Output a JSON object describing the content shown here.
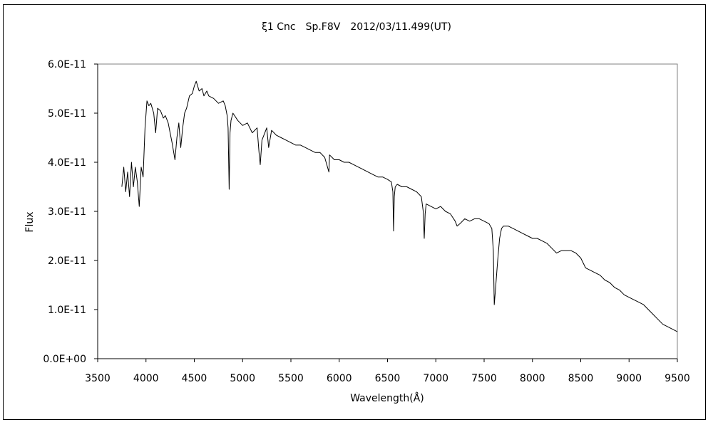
{
  "chart_data": {
    "type": "line",
    "title": "ξ1 Cnc　Sp.F8V　2012/03/11.499(UT)",
    "xlabel": "Wavelength(Å)",
    "ylabel": "Flux",
    "xlim": [
      3500,
      9500
    ],
    "ylim": [
      0,
      6e-11
    ],
    "x_ticks": [
      "3500",
      "4000",
      "4500",
      "5000",
      "5500",
      "6000",
      "6500",
      "7000",
      "7500",
      "8000",
      "8500",
      "9000",
      "9500"
    ],
    "y_ticks": [
      "0.0E+00",
      "1.0E-11",
      "2.0E-11",
      "3.0E-11",
      "4.0E-11",
      "5.0E-11",
      "6.0E-11"
    ],
    "grid": false,
    "series": [
      {
        "color": "#000000",
        "x": [
          3750,
          3770,
          3790,
          3810,
          3830,
          3850,
          3870,
          3890,
          3910,
          3930,
          3950,
          3970,
          3990,
          4010,
          4030,
          4050,
          4080,
          4100,
          4120,
          4150,
          4180,
          4200,
          4230,
          4250,
          4270,
          4300,
          4320,
          4340,
          4360,
          4380,
          4400,
          4420,
          4450,
          4480,
          4500,
          4520,
          4550,
          4580,
          4600,
          4630,
          4650,
          4700,
          4750,
          4800,
          4820,
          4840,
          4850,
          4861,
          4870,
          4880,
          4900,
          4950,
          5000,
          5050,
          5100,
          5150,
          5170,
          5183,
          5200,
          5250,
          5270,
          5300,
          5350,
          5400,
          5450,
          5500,
          5550,
          5600,
          5650,
          5700,
          5750,
          5800,
          5850,
          5893,
          5900,
          5950,
          6000,
          6050,
          6100,
          6150,
          6200,
          6250,
          6300,
          6350,
          6400,
          6450,
          6500,
          6540,
          6555,
          6563,
          6570,
          6580,
          6600,
          6650,
          6700,
          6750,
          6800,
          6850,
          6870,
          6880,
          6890,
          6900,
          6950,
          7000,
          7050,
          7100,
          7150,
          7200,
          7220,
          7250,
          7300,
          7350,
          7400,
          7450,
          7500,
          7550,
          7580,
          7595,
          7605,
          7615,
          7625,
          7640,
          7660,
          7680,
          7700,
          7750,
          7800,
          7850,
          7900,
          7950,
          8000,
          8050,
          8100,
          8150,
          8200,
          8250,
          8300,
          8350,
          8400,
          8450,
          8500,
          8550,
          8600,
          8650,
          8700,
          8750,
          8800,
          8850,
          8900,
          8950,
          9000,
          9050,
          9100,
          9150,
          9200,
          9250,
          9300,
          9350,
          9400,
          9450,
          9500
        ],
        "y": [
          3.5e-11,
          3.9e-11,
          3.4e-11,
          3.8e-11,
          3.3e-11,
          4e-11,
          3.5e-11,
          3.9e-11,
          3.6e-11,
          3.1e-11,
          3.9e-11,
          3.7e-11,
          4.7e-11,
          5.25e-11,
          5.15e-11,
          5.2e-11,
          5e-11,
          4.6e-11,
          5.1e-11,
          5.05e-11,
          4.9e-11,
          4.95e-11,
          4.8e-11,
          4.6e-11,
          4.4e-11,
          4.05e-11,
          4.5e-11,
          4.8e-11,
          4.3e-11,
          4.7e-11,
          5e-11,
          5.1e-11,
          5.35e-11,
          5.4e-11,
          5.55e-11,
          5.65e-11,
          5.45e-11,
          5.5e-11,
          5.35e-11,
          5.45e-11,
          5.35e-11,
          5.3e-11,
          5.2e-11,
          5.25e-11,
          5.15e-11,
          4.95e-11,
          4.7e-11,
          3.45e-11,
          4.6e-11,
          4.85e-11,
          5e-11,
          4.85e-11,
          4.75e-11,
          4.8e-11,
          4.6e-11,
          4.7e-11,
          4.2e-11,
          3.95e-11,
          4.45e-11,
          4.7e-11,
          4.3e-11,
          4.65e-11,
          4.55e-11,
          4.5e-11,
          4.45e-11,
          4.4e-11,
          4.35e-11,
          4.35e-11,
          4.3e-11,
          4.25e-11,
          4.2e-11,
          4.2e-11,
          4.1e-11,
          3.8e-11,
          4.15e-11,
          4.05e-11,
          4.05e-11,
          4e-11,
          4e-11,
          3.95e-11,
          3.9e-11,
          3.85e-11,
          3.8e-11,
          3.75e-11,
          3.7e-11,
          3.7e-11,
          3.65e-11,
          3.6e-11,
          3.4e-11,
          2.6e-11,
          3.3e-11,
          3.5e-11,
          3.55e-11,
          3.5e-11,
          3.5e-11,
          3.45e-11,
          3.4e-11,
          3.3e-11,
          3e-11,
          2.45e-11,
          2.95e-11,
          3.15e-11,
          3.1e-11,
          3.05e-11,
          3.1e-11,
          3e-11,
          2.95e-11,
          2.8e-11,
          2.7e-11,
          2.75e-11,
          2.85e-11,
          2.8e-11,
          2.85e-11,
          2.85e-11,
          2.8e-11,
          2.75e-11,
          2.65e-11,
          2.2e-11,
          1.1e-11,
          1.35e-11,
          1.6e-11,
          2e-11,
          2.45e-11,
          2.65e-11,
          2.7e-11,
          2.7e-11,
          2.65e-11,
          2.6e-11,
          2.55e-11,
          2.5e-11,
          2.45e-11,
          2.45e-11,
          2.4e-11,
          2.35e-11,
          2.25e-11,
          2.15e-11,
          2.2e-11,
          2.2e-11,
          2.2e-11,
          2.15e-11,
          2.05e-11,
          1.85e-11,
          1.8e-11,
          1.75e-11,
          1.7e-11,
          1.6e-11,
          1.55e-11,
          1.45e-11,
          1.4e-11,
          1.3e-11,
          1.25e-11,
          1.2e-11,
          1.15e-11,
          1.1e-11,
          1e-11,
          9e-12,
          8e-12,
          7e-12,
          6.5e-12,
          6e-12,
          5.5e-12
        ]
      }
    ]
  }
}
